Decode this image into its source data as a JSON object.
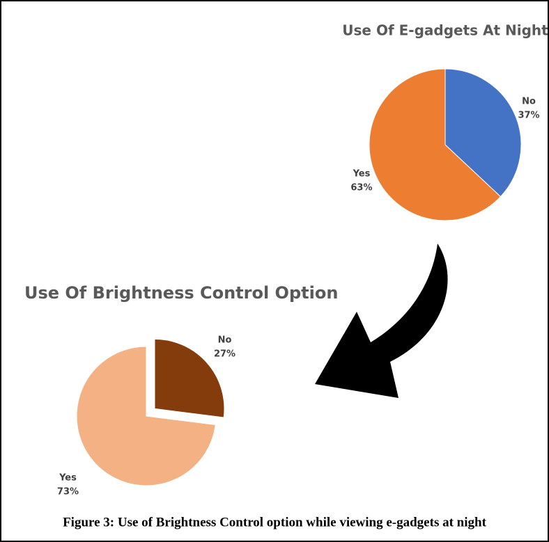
{
  "chart_data": [
    {
      "type": "pie",
      "title": "Use Of E-gadgets At Night",
      "categories": [
        "No",
        "Yes"
      ],
      "values": [
        37,
        63
      ],
      "value_labels": [
        "37%",
        "63%"
      ],
      "colors": [
        "#4472c4",
        "#ed7d31"
      ],
      "explode": [
        false,
        false
      ]
    },
    {
      "type": "pie",
      "title": "Use Of Brightness Control Option",
      "categories": [
        "No",
        "Yes"
      ],
      "values": [
        27,
        73
      ],
      "value_labels": [
        "27%",
        "73%"
      ],
      "colors": [
        "#843c0c",
        "#f4b183"
      ],
      "explode": [
        true,
        false
      ]
    }
  ],
  "caption": "Figure 3: Use of Brightness Control option while viewing e-gadgets at night"
}
